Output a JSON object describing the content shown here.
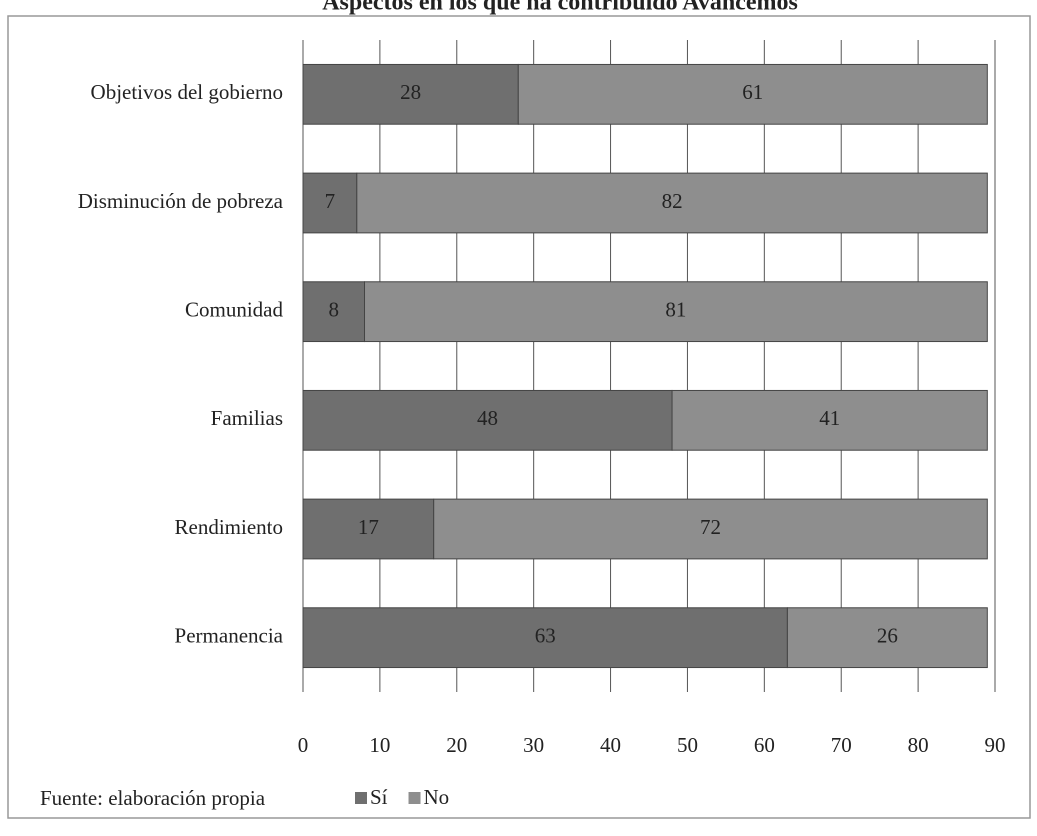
{
  "chart_data": {
    "type": "stacked-barh",
    "title": "Aspectos en los que ha contribuido Avancemos",
    "categories": [
      "Objetivos del gobierno",
      "Disminución de pobreza",
      "Comunidad",
      "Familias",
      "Rendimiento",
      "Permanencia"
    ],
    "series": [
      {
        "name": "Sí",
        "color": "#6f6f6f",
        "values": [
          28,
          7,
          8,
          48,
          17,
          63
        ]
      },
      {
        "name": "No",
        "color": "#8e8e8e",
        "values": [
          61,
          82,
          81,
          41,
          72,
          26
        ]
      }
    ],
    "xlim": [
      0,
      90
    ],
    "xticks": [
      0,
      10,
      20,
      30,
      40,
      50,
      60,
      70,
      80,
      90
    ],
    "grid": true,
    "source": "Fuente: elaboración propia"
  }
}
